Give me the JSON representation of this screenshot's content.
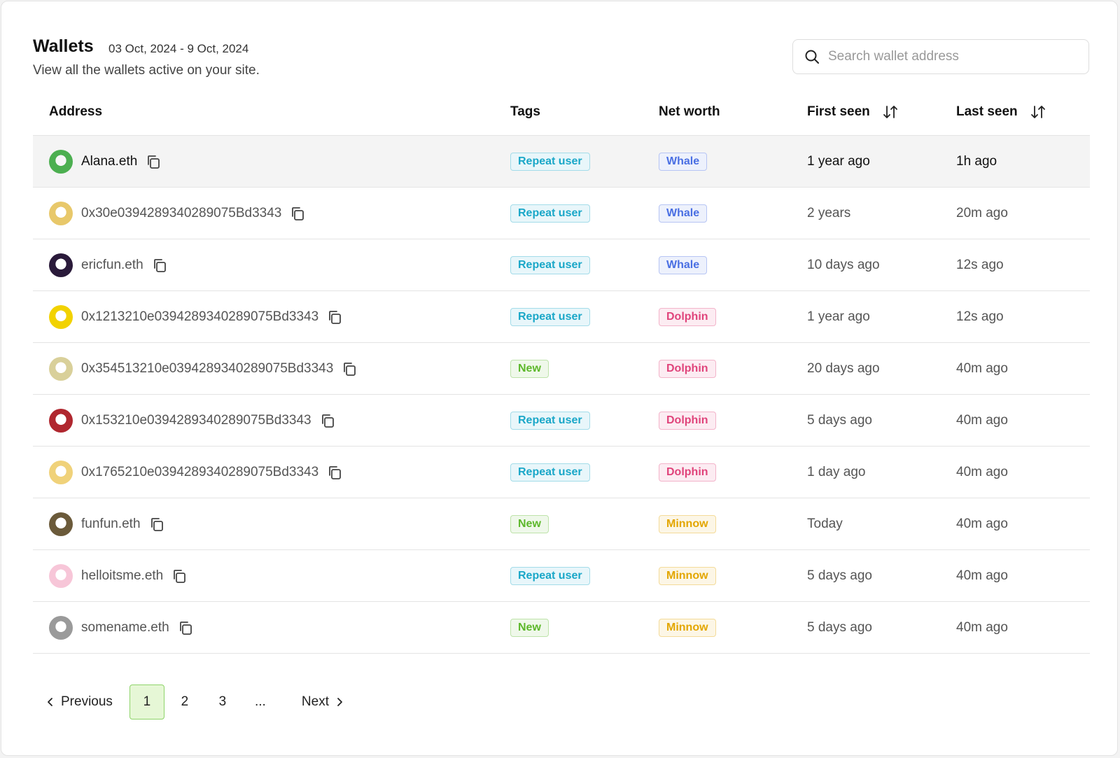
{
  "header": {
    "title": "Wallets",
    "date_range": "03 Oct, 2024 - 9 Oct, 2024",
    "subtitle": "View all the wallets active on your site."
  },
  "search": {
    "placeholder": "Search wallet address"
  },
  "table": {
    "columns": [
      "Address",
      "Tags",
      "Net worth",
      "First seen",
      "Last seen"
    ],
    "rows": [
      {
        "address": "Alana.eth",
        "tag": {
          "text": "Repeat user",
          "color": "#1aa7c8"
        },
        "net_worth": {
          "text": "Whale",
          "color": "#4a6fe3"
        },
        "first_seen": "1 year ago",
        "last_seen": "1h ago"
      },
      {
        "address": "0x30e0394289340289075Bd3343",
        "tag": {
          "text": "Repeat user",
          "color": "#1aa7c8"
        },
        "net_worth": {
          "text": "Whale",
          "color": "#4a6fe3"
        },
        "first_seen": "2 years",
        "last_seen": "20m ago"
      },
      {
        "address": "ericfun.eth",
        "tag": {
          "text": "Repeat user",
          "color": "#1aa7c8"
        },
        "net_worth": {
          "text": "Whale",
          "color": "#4a6fe3"
        },
        "first_seen": "10 days ago",
        "last_seen": "12s ago"
      },
      {
        "address": "0x1213210e0394289340289075Bd3343",
        "tag": {
          "text": "Repeat user",
          "color": "#1aa7c8"
        },
        "net_worth": {
          "text": "Dolphin",
          "color": "#e0447b"
        },
        "first_seen": "1 year ago",
        "last_seen": "12s ago"
      },
      {
        "address": "0x354513210e0394289340289075Bd3343",
        "tag": {
          "text": "New",
          "color": "#5db82b"
        },
        "net_worth": {
          "text": "Dolphin",
          "color": "#e0447b"
        },
        "first_seen": "20 days ago",
        "last_seen": "40m ago"
      },
      {
        "address": "0x153210e0394289340289075Bd3343",
        "tag": {
          "text": "Repeat user",
          "color": "#1aa7c8"
        },
        "net_worth": {
          "text": "Dolphin",
          "color": "#e0447b"
        },
        "first_seen": "5 days ago",
        "last_seen": "40m ago"
      },
      {
        "address": "0x1765210e0394289340289075Bd3343",
        "tag": {
          "text": "Repeat user",
          "color": "#1aa7c8"
        },
        "net_worth": {
          "text": "Dolphin",
          "color": "#e0447b"
        },
        "first_seen": "1 day ago",
        "last_seen": "40m ago"
      },
      {
        "address": "funfun.eth",
        "tag": {
          "text": "New",
          "color": "#5db82b"
        },
        "net_worth": {
          "text": "Minnow",
          "color": "#e3a600"
        },
        "first_seen": "Today",
        "last_seen": "40m ago"
      },
      {
        "address": "helloitsme.eth",
        "tag": {
          "text": "Repeat user",
          "color": "#1aa7c8"
        },
        "net_worth": {
          "text": "Minnow",
          "color": "#e3a600"
        },
        "first_seen": "5 days ago",
        "last_seen": "40m ago"
      },
      {
        "address": "somename.eth",
        "tag": {
          "text": "New",
          "color": "#5db82b"
        },
        "net_worth": {
          "text": "Minnow",
          "color": "#e3a600"
        },
        "first_seen": "5 days ago",
        "last_seen": "40m ago"
      }
    ]
  },
  "pagination": {
    "previous": "Previous",
    "pages": [
      1,
      2,
      3,
      "..."
    ],
    "current": 0,
    "next": "Next"
  }
}
